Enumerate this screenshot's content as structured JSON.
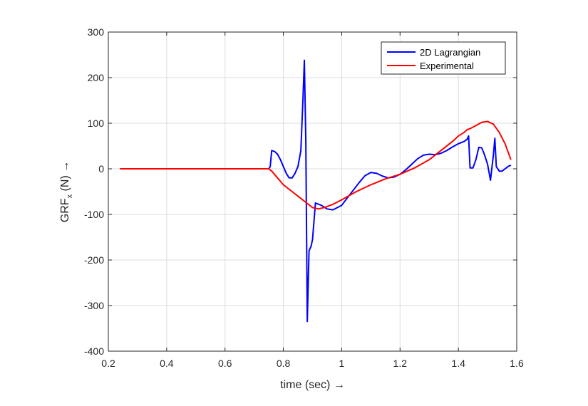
{
  "chart_data": {
    "type": "line",
    "xlabel": "time (sec) →",
    "ylabel_main": "GRF",
    "ylabel_sub": "x",
    "ylabel_tail": " (N) →",
    "xlim": [
      0.2,
      1.6
    ],
    "ylim": [
      -400,
      300
    ],
    "xticks": [
      0.2,
      0.4,
      0.6,
      0.8,
      1,
      1.2,
      1.4,
      1.6
    ],
    "yticks": [
      -400,
      -300,
      -200,
      -100,
      0,
      100,
      200,
      300
    ],
    "grid": true,
    "legend_position": "top-right",
    "series": [
      {
        "name": "2D Lagrangian",
        "color": "#0000ff",
        "x": [
          0.24,
          0.75,
          0.755,
          0.76,
          0.77,
          0.78,
          0.79,
          0.8,
          0.81,
          0.82,
          0.83,
          0.84,
          0.85,
          0.86,
          0.867,
          0.872,
          0.877,
          0.882,
          0.888,
          0.895,
          0.9,
          0.91,
          0.93,
          0.95,
          0.97,
          1.0,
          1.03,
          1.06,
          1.08,
          1.1,
          1.12,
          1.14,
          1.16,
          1.18,
          1.2,
          1.22,
          1.24,
          1.26,
          1.28,
          1.3,
          1.32,
          1.34,
          1.36,
          1.38,
          1.4,
          1.42,
          1.43,
          1.435,
          1.44,
          1.45,
          1.46,
          1.47,
          1.48,
          1.49,
          1.5,
          1.51,
          1.52,
          1.525,
          1.53,
          1.54,
          1.55,
          1.56,
          1.57,
          1.58
        ],
        "y": [
          0,
          0,
          5,
          40,
          38,
          32,
          20,
          5,
          -10,
          -20,
          -20,
          -10,
          5,
          40,
          150,
          238,
          60,
          -335,
          -180,
          -170,
          -155,
          -75,
          -80,
          -88,
          -90,
          -80,
          -55,
          -30,
          -15,
          -8,
          -10,
          -16,
          -20,
          -18,
          -12,
          -2,
          10,
          22,
          30,
          32,
          31,
          34,
          40,
          48,
          55,
          60,
          65,
          72,
          2,
          2,
          20,
          47,
          46,
          30,
          10,
          -25,
          30,
          67,
          5,
          -5,
          -5,
          0,
          5,
          8
        ]
      },
      {
        "name": "Experimental",
        "color": "#ff0000",
        "x": [
          0.24,
          0.75,
          0.76,
          0.78,
          0.8,
          0.83,
          0.86,
          0.88,
          0.9,
          0.92,
          0.94,
          0.97,
          1.0,
          1.05,
          1.1,
          1.15,
          1.2,
          1.25,
          1.3,
          1.35,
          1.38,
          1.4,
          1.42,
          1.43,
          1.44,
          1.46,
          1.48,
          1.5,
          1.52,
          1.54,
          1.56,
          1.58
        ],
        "y": [
          0,
          0,
          -5,
          -20,
          -35,
          -50,
          -65,
          -75,
          -85,
          -88,
          -85,
          -78,
          -68,
          -50,
          -35,
          -22,
          -12,
          2,
          20,
          45,
          60,
          72,
          80,
          86,
          88,
          95,
          102,
          104,
          98,
          80,
          55,
          20
        ]
      }
    ]
  }
}
